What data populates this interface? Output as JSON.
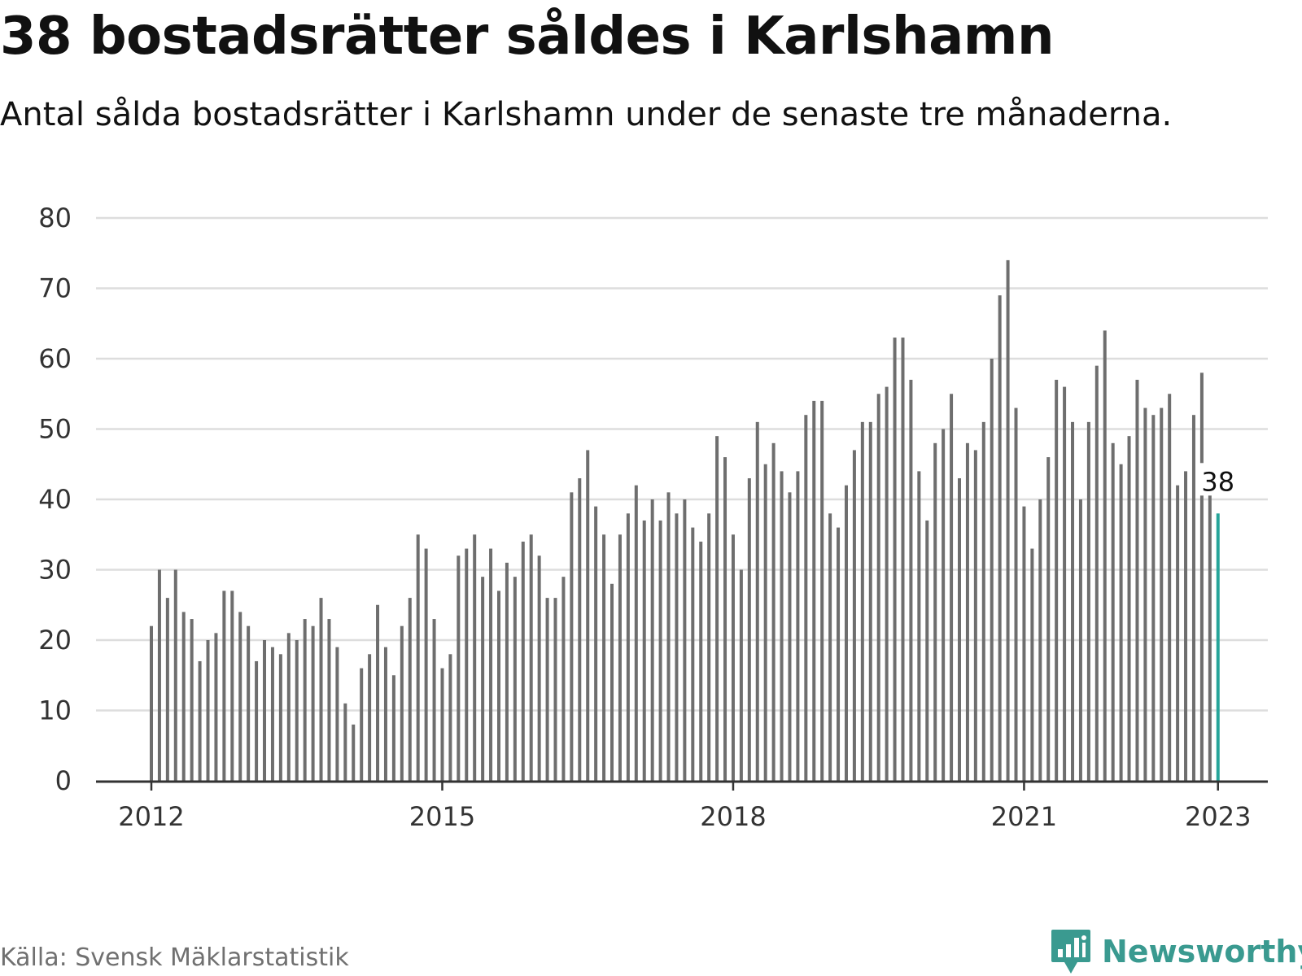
{
  "title": "38 bostadsrätter såldes i Karlshamn",
  "subtitle": "Antal sålda bostadsrätter i Karlshamn under de senaste tre månaderna.",
  "source": "Källa: Svensk Mäklarstatistik",
  "brand": {
    "name": "Newsworthy",
    "logo_icon": "bar-chart-speech-bubble-icon",
    "color": "#3a9a90"
  },
  "colors": {
    "bar": "#6e6e6e",
    "highlight": "#26a59a",
    "grid": "#dddddd",
    "axis": "#333333"
  },
  "chart_data": {
    "type": "bar",
    "title": "38 bostadsrätter såldes i Karlshamn",
    "subtitle": "Antal sålda bostadsrätter i Karlshamn under de senaste tre månaderna.",
    "xlabel": "",
    "ylabel": "",
    "ylim": [
      0,
      80
    ],
    "y_ticks": [
      0,
      10,
      20,
      30,
      40,
      50,
      60,
      70,
      80
    ],
    "x_ticks": [
      "2012",
      "2015",
      "2018",
      "2021",
      "2023"
    ],
    "grid": true,
    "frequency": "monthly",
    "start": "2012-01",
    "end": "2023-01",
    "values": [
      22,
      30,
      26,
      30,
      24,
      23,
      17,
      20,
      21,
      27,
      27,
      24,
      22,
      17,
      20,
      19,
      18,
      21,
      20,
      23,
      22,
      26,
      23,
      19,
      11,
      8,
      16,
      18,
      25,
      19,
      15,
      22,
      26,
      35,
      33,
      23,
      16,
      18,
      32,
      33,
      35,
      29,
      33,
      27,
      31,
      29,
      34,
      35,
      32,
      26,
      26,
      29,
      41,
      43,
      47,
      39,
      35,
      28,
      35,
      38,
      42,
      37,
      40,
      37,
      41,
      38,
      40,
      36,
      34,
      38,
      49,
      46,
      35,
      30,
      43,
      51,
      45,
      48,
      44,
      41,
      44,
      52,
      54,
      54,
      38,
      36,
      42,
      47,
      51,
      51,
      55,
      56,
      63,
      63,
      57,
      44,
      37,
      48,
      50,
      55,
      43,
      48,
      47,
      51,
      60,
      69,
      74,
      53,
      39,
      33,
      40,
      46,
      57,
      56,
      51,
      40,
      51,
      59,
      64,
      48,
      45,
      49,
      57,
      53,
      52,
      53,
      55,
      42,
      44,
      52,
      58,
      45,
      38
    ],
    "highlight": {
      "date": "2023-01",
      "value": 38,
      "label": "38"
    }
  }
}
